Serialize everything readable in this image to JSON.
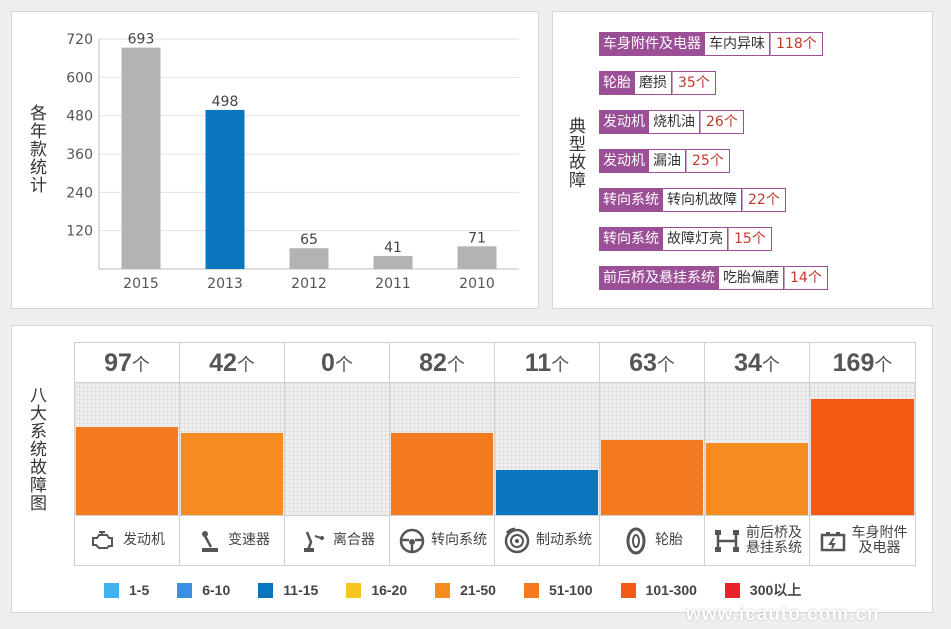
{
  "year_panel": {
    "side_label": "各年款统计"
  },
  "fault_panel": {
    "side_label": "典型故障",
    "items": [
      {
        "system": "车身附件及电器",
        "symptom": "车内异味",
        "count": "118个"
      },
      {
        "system": "轮胎",
        "symptom": "磨损",
        "count": "35个"
      },
      {
        "system": "发动机",
        "symptom": "烧机油",
        "count": "26个"
      },
      {
        "system": "发动机",
        "symptom": "漏油",
        "count": "25个"
      },
      {
        "system": "转向系统",
        "symptom": "转向机故障",
        "count": "22个"
      },
      {
        "system": "转向系统",
        "symptom": "故障灯亮",
        "count": "15个"
      },
      {
        "system": "前后桥及悬挂系统",
        "symptom": "吃胎偏磨",
        "count": "14个"
      }
    ]
  },
  "system_panel": {
    "side_label": "八大系统故障图",
    "unit": "个",
    "systems": [
      {
        "name": "发动机",
        "count": "97",
        "value": 97,
        "color": "#f47a20",
        "icon": "engine-icon"
      },
      {
        "name": "变速器",
        "count": "42",
        "value": 42,
        "color": "#f68b1f",
        "icon": "gearshift-icon"
      },
      {
        "name": "离合器",
        "count": "0",
        "value": 0,
        "color": "#f0f0f0",
        "icon": "clutch-pedal-icon"
      },
      {
        "name": "转向系统",
        "count": "82",
        "value": 82,
        "color": "#f47a20",
        "icon": "steering-wheel-icon"
      },
      {
        "name": "制动系统",
        "count": "11",
        "value": 11,
        "color": "#0a76bd",
        "icon": "brake-disc-icon"
      },
      {
        "name": "轮胎",
        "count": "63",
        "value": 63,
        "color": "#f47a20",
        "icon": "tire-icon"
      },
      {
        "name": "前后桥及悬挂系统",
        "name_lines": [
          "前后桥及",
          "悬挂系统"
        ],
        "count": "34",
        "value": 34,
        "color": "#f68b1f",
        "icon": "suspension-icon"
      },
      {
        "name": "车身附件及电器",
        "name_lines": [
          "车身附件",
          "及电器"
        ],
        "count": "169",
        "value": 169,
        "color": "#f25a14",
        "icon": "battery-icon"
      }
    ],
    "legend": [
      {
        "label": "1-5",
        "color": "#3fb3ee"
      },
      {
        "label": "6-10",
        "color": "#3b8fe0"
      },
      {
        "label": "11-15",
        "color": "#0a76bd"
      },
      {
        "label": "16-20",
        "color": "#f7c623"
      },
      {
        "label": "21-50",
        "color": "#f68b1f"
      },
      {
        "label": "51-100",
        "color": "#f47a20"
      },
      {
        "label": "101-300",
        "color": "#f25a14"
      },
      {
        "label": "300以上",
        "color": "#e8242b"
      }
    ]
  },
  "watermark": "www.icauto.com.cn",
  "chart_data": [
    {
      "type": "bar",
      "categories": [
        "2015",
        "2013",
        "2012",
        "2011",
        "2010"
      ],
      "values": [
        693,
        498,
        65,
        41,
        71
      ],
      "colors": [
        "#b3b3b3",
        "#0a76bd",
        "#b3b3b3",
        "#b3b3b3",
        "#b3b3b3"
      ],
      "ylim": [
        0,
        720
      ],
      "yticks": [
        120,
        240,
        360,
        480,
        600,
        720
      ],
      "grid": true,
      "ylabel": "各年款统计"
    },
    {
      "type": "bar",
      "categories": [
        "发动机",
        "变速器",
        "离合器",
        "转向系统",
        "制动系统",
        "轮胎",
        "前后桥及悬挂系统",
        "车身附件及电器"
      ],
      "values": [
        97,
        42,
        0,
        82,
        11,
        63,
        34,
        169
      ],
      "ylabel": "八大系统故障图"
    }
  ]
}
